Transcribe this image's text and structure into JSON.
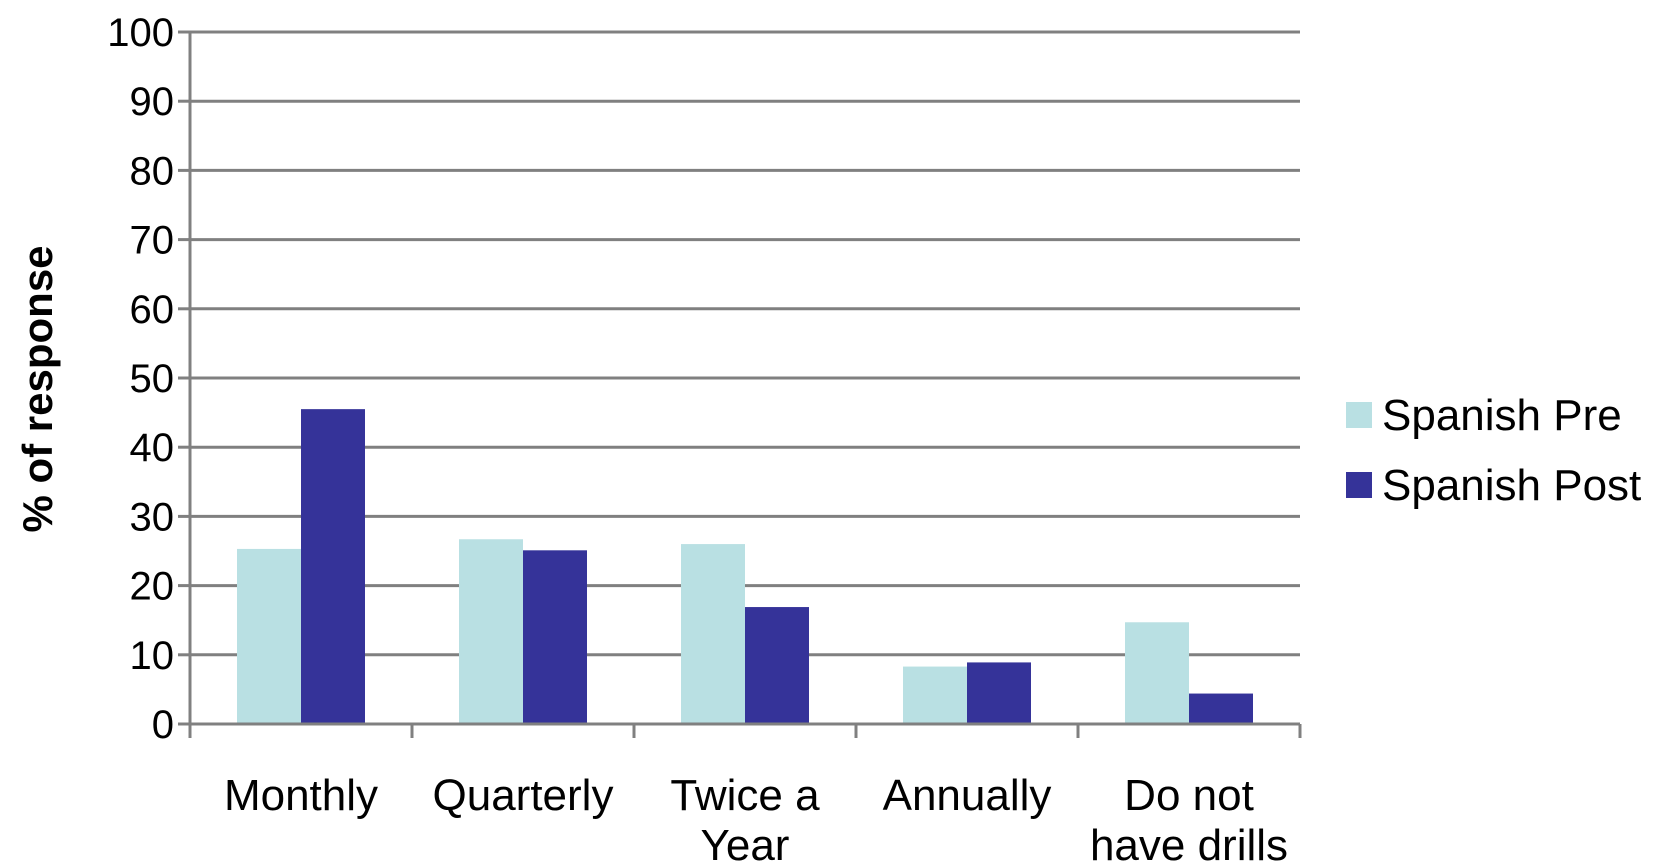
{
  "chart_data": {
    "type": "bar",
    "ylabel": "% of response",
    "ylim": [
      0,
      100
    ],
    "yticks": [
      0,
      10,
      20,
      30,
      40,
      50,
      60,
      70,
      80,
      90,
      100
    ],
    "grid": true,
    "legend_position": "right",
    "categories": [
      [
        "Monthly"
      ],
      [
        "Quarterly"
      ],
      [
        "Twice a",
        "Year"
      ],
      [
        "Annually"
      ],
      [
        "Do not",
        "have drills"
      ]
    ],
    "series": [
      {
        "name": "Spanish Pre",
        "color": "#b9e0e3",
        "values": [
          25.3,
          26.7,
          26.0,
          8.3,
          14.7
        ]
      },
      {
        "name": "Spanish Post",
        "color": "#353399",
        "values": [
          45.5,
          25.1,
          16.9,
          8.9,
          4.4
        ]
      }
    ]
  }
}
